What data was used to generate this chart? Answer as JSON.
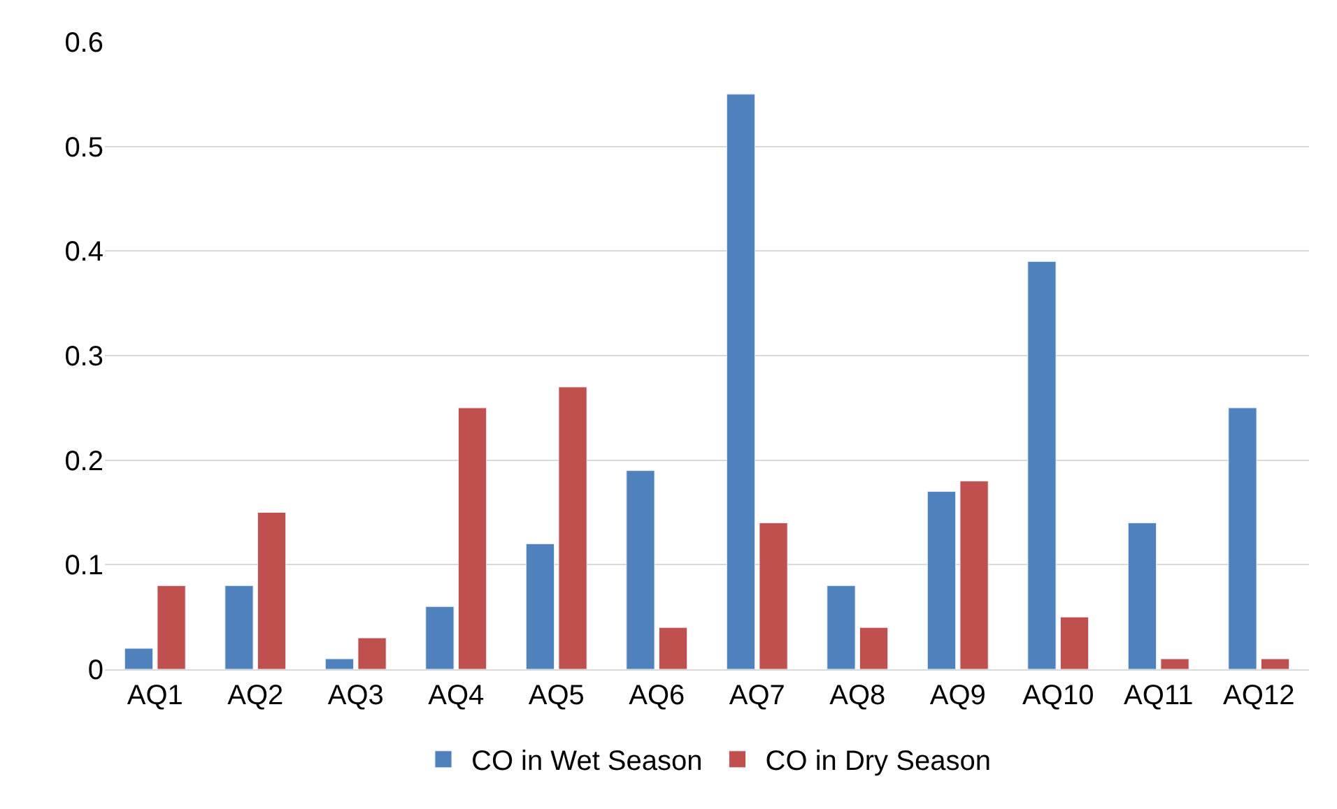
{
  "chart_data": {
    "type": "bar",
    "categories": [
      "AQ1",
      "AQ2",
      "AQ3",
      "AQ4",
      "AQ5",
      "AQ6",
      "AQ7",
      "AQ8",
      "AQ9",
      "AQ10",
      "AQ11",
      "AQ12"
    ],
    "series": [
      {
        "name": "CO in Wet Season",
        "color": "#4f81bd",
        "values": [
          0.02,
          0.08,
          0.01,
          0.06,
          0.12,
          0.19,
          0.55,
          0.08,
          0.17,
          0.39,
          0.14,
          0.25
        ]
      },
      {
        "name": "CO in Dry Season",
        "color": "#c0504d",
        "values": [
          0.08,
          0.15,
          0.03,
          0.25,
          0.27,
          0.04,
          0.14,
          0.04,
          0.18,
          0.05,
          0.01,
          0.01
        ]
      }
    ],
    "ylim": [
      0,
      0.6
    ],
    "yticks": [
      0,
      0.1,
      0.2,
      0.3,
      0.4,
      0.5,
      0.6
    ],
    "grid": "y",
    "legend": "bottom"
  }
}
